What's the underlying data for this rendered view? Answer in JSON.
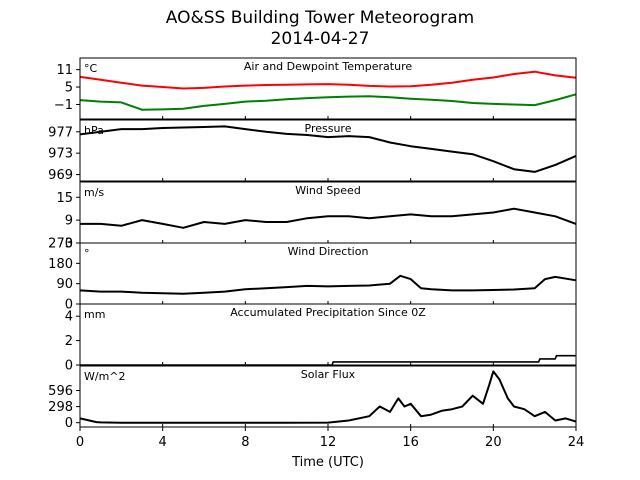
{
  "figure": {
    "title_line1": "AO&SS Building Tower Meteorogram",
    "title_line2": "2014-04-27"
  },
  "chart_data": [
    {
      "type": "line",
      "title": "Air and Dewpoint Temperature",
      "unit": "°C",
      "ylim": [
        -6,
        15
      ],
      "yticks": [
        11,
        5,
        -1
      ],
      "ytick_labels": [
        "11",
        "5",
        "−1"
      ],
      "x": [
        0,
        1,
        2,
        3,
        4,
        5,
        6,
        7,
        8,
        9,
        10,
        11,
        12,
        13,
        14,
        15,
        16,
        17,
        18,
        19,
        20,
        21,
        22,
        23,
        24
      ],
      "series": [
        {
          "color": "#ff0000",
          "values": [
            8.5,
            7.5,
            6.5,
            5.5,
            5.0,
            4.5,
            4.7,
            5.2,
            5.5,
            5.7,
            5.8,
            5.9,
            6.0,
            5.8,
            5.4,
            5.2,
            5.3,
            5.8,
            6.5,
            7.5,
            8.3,
            9.5,
            10.3,
            9.0,
            8.2
          ]
        },
        {
          "color": "#008000",
          "values": [
            0.5,
            0,
            -0.3,
            -2.8,
            -2.7,
            -2.5,
            -1.5,
            -0.8,
            0,
            0.3,
            0.8,
            1.2,
            1.5,
            1.7,
            1.8,
            1.5,
            1.0,
            0.6,
            0.2,
            -0.5,
            -0.8,
            -1.0,
            -1.2,
            0.5,
            2.5
          ]
        }
      ]
    },
    {
      "type": "line",
      "title": "Pressure",
      "unit": "hPa",
      "ylim": [
        967.8,
        979.2
      ],
      "yticks": [
        977,
        973,
        969
      ],
      "x": [
        0,
        1,
        2,
        3,
        4,
        5,
        6,
        7,
        8,
        9,
        10,
        11,
        12,
        13,
        14,
        15,
        16,
        17,
        18,
        19,
        20,
        21,
        22,
        23,
        24
      ],
      "series": [
        {
          "color": "#000000",
          "values": [
            976.5,
            977.0,
            977.5,
            977.5,
            977.7,
            977.8,
            977.9,
            978.0,
            977.5,
            977.0,
            976.6,
            976.4,
            976.0,
            976.2,
            976.0,
            975.0,
            974.3,
            973.8,
            973.3,
            972.8,
            971.5,
            970.0,
            969.5,
            970.8,
            972.5
          ]
        }
      ]
    },
    {
      "type": "line",
      "title": "Wind Speed",
      "unit": "m/s",
      "ylim": [
        3,
        19
      ],
      "yticks": [
        15,
        9,
        3
      ],
      "x": [
        0,
        1,
        2,
        3,
        4,
        5,
        6,
        7,
        8,
        9,
        10,
        11,
        12,
        13,
        14,
        15,
        16,
        17,
        18,
        19,
        20,
        21,
        22,
        23,
        24
      ],
      "series": [
        {
          "color": "#000000",
          "values": [
            8,
            8,
            7.5,
            9,
            8,
            7,
            8.5,
            8,
            9,
            8.5,
            8.5,
            9.5,
            10,
            10,
            9.5,
            10,
            10.5,
            10,
            10,
            10.5,
            11,
            12,
            11,
            10,
            8
          ]
        }
      ]
    },
    {
      "type": "line",
      "title": "Wind Direction",
      "unit": "°",
      "ylim": [
        0,
        270
      ],
      "yticks": [
        270,
        180,
        90,
        0
      ],
      "x": [
        0,
        1,
        2,
        3,
        4,
        5,
        6,
        7,
        8,
        9,
        10,
        11,
        12,
        13,
        14,
        15,
        15.5,
        16,
        16.5,
        17,
        18,
        19,
        20,
        21,
        22,
        22.5,
        23,
        24
      ],
      "series": [
        {
          "color": "#000000",
          "values": [
            60,
            55,
            55,
            50,
            48,
            45,
            50,
            55,
            65,
            70,
            75,
            80,
            78,
            80,
            82,
            90,
            125,
            110,
            70,
            65,
            60,
            60,
            62,
            64,
            70,
            110,
            120,
            105
          ]
        }
      ]
    },
    {
      "type": "line",
      "title": "Accumulated Precipitation Since 0Z",
      "unit": "mm",
      "ylim": [
        0,
        5
      ],
      "yticks": [
        4,
        2,
        0
      ],
      "x": [
        0,
        12.2,
        12.25,
        22.2,
        22.25,
        23.0,
        23.05,
        24
      ],
      "series": [
        {
          "color": "#000000",
          "values": [
            0,
            0,
            0.25,
            0.25,
            0.5,
            0.5,
            0.76,
            0.76
          ]
        }
      ]
    },
    {
      "type": "line",
      "title": "Solar Flux",
      "unit": "W/m^2",
      "ylim": [
        -80,
        1050
      ],
      "yticks": [
        596,
        298,
        0
      ],
      "x": [
        0,
        0.8,
        1,
        2,
        4,
        6,
        8,
        10,
        12,
        13,
        14,
        14.5,
        15,
        15.4,
        15.7,
        16,
        16.5,
        17,
        17.5,
        18,
        18.5,
        19,
        19.5,
        19.8,
        20,
        20.3,
        20.7,
        21,
        21.5,
        22,
        22.5,
        23,
        23.5,
        24
      ],
      "series": [
        {
          "color": "#000000",
          "values": [
            80,
            10,
            5,
            0,
            0,
            0,
            0,
            0,
            2,
            40,
            120,
            300,
            200,
            450,
            300,
            350,
            120,
            150,
            220,
            250,
            300,
            500,
            350,
            700,
            950,
            800,
            450,
            300,
            250,
            120,
            200,
            40,
            80,
            20
          ]
        }
      ]
    }
  ],
  "x_axis": {
    "label": "Time (UTC)",
    "ticks": [
      0,
      4,
      8,
      12,
      16,
      20,
      24
    ],
    "xlim": [
      0,
      24
    ]
  }
}
